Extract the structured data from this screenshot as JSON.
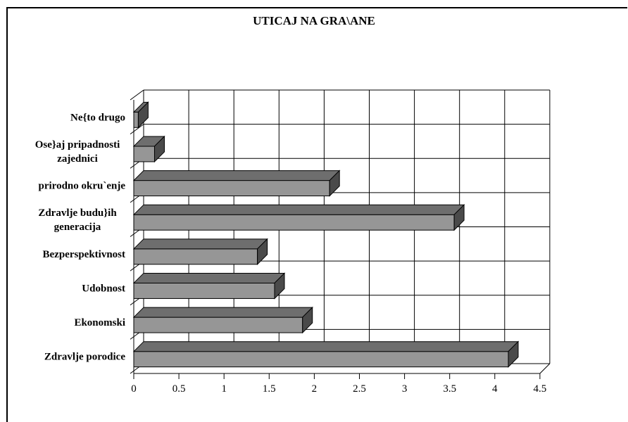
{
  "chart_data": {
    "type": "bar",
    "orientation": "horizontal",
    "title": "UTICAJ NA GRA\\ANE",
    "categories": [
      "Zdravlje porodice",
      "Ekonomski",
      "Udobnost",
      "Bezperspektivnost",
      [
        "Zdravlje budu}ih",
        "generacija"
      ],
      "prirodno okru`enje",
      [
        "Ose}aj pripadnosti",
        "zajednici"
      ],
      "Ne{to drugo"
    ],
    "values": [
      4.15,
      1.87,
      1.56,
      1.37,
      3.55,
      2.17,
      0.23,
      0.05
    ],
    "xlim": [
      0,
      4.5
    ],
    "xticks": [
      "0",
      "0.5",
      "1",
      "1.5",
      "2",
      "2.5",
      "3",
      "3.5",
      "4",
      "4.5"
    ],
    "grid": true,
    "colors": {
      "bar_front": "#969696",
      "bar_top": "#6e6e6e",
      "bar_side": "#4a4a4a"
    }
  }
}
